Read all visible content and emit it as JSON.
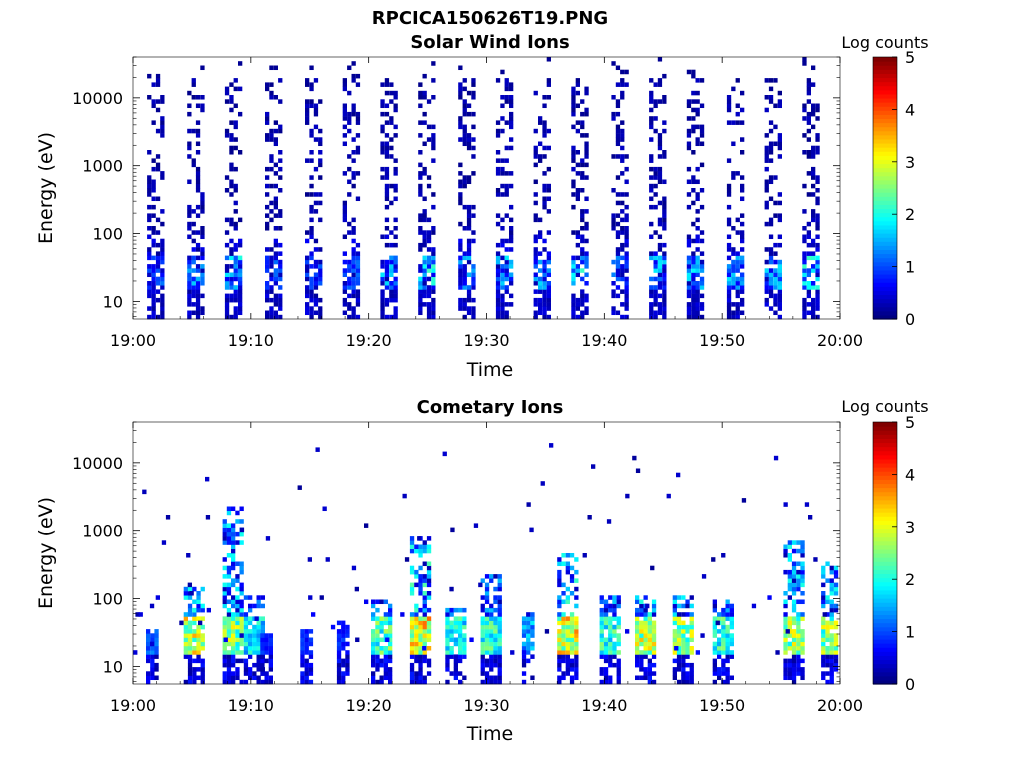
{
  "figure": {
    "filename": "RPCICA150626T19.PNG"
  },
  "chart_data": [
    {
      "type": "heatmap",
      "title": "Solar Wind Ions",
      "xlabel": "Time",
      "ylabel": "Energy (eV)",
      "x_ticks": [
        "19:00",
        "19:10",
        "19:20",
        "19:30",
        "19:40",
        "19:50",
        "20:00"
      ],
      "x_range": [
        "19:00",
        "20:00"
      ],
      "y_scale": "log",
      "y_range": [
        5.5,
        40000
      ],
      "y_ticks": [
        10,
        100,
        1000,
        10000
      ],
      "y_tick_labels": [
        "10",
        "100",
        "1000",
        "10000"
      ],
      "colorbar": {
        "label": "Log counts",
        "range": [
          0,
          5
        ],
        "ticks": [
          "0",
          "1",
          "2",
          "3",
          "4",
          "5"
        ],
        "colormap": "jet"
      },
      "sweep_start_minutes": [
        1.2,
        4.6,
        7.8,
        11.2,
        14.6,
        17.8,
        21.0,
        24.2,
        27.6,
        30.8,
        34.0,
        37.2,
        40.6,
        43.8,
        47.0,
        50.4,
        53.6,
        56.8,
        59.8
      ],
      "sweep_peak_log_counts": [
        1.1,
        1.5,
        1.9,
        1.0,
        0.9,
        1.0,
        1.6,
        2.0,
        1.4,
        1.6,
        1.5,
        2.0,
        1.2,
        1.6,
        1.7,
        1.6,
        1.6,
        2.0,
        1.9
      ],
      "peak_energy_eV": [
        20,
        30
      ]
    },
    {
      "type": "heatmap",
      "title": "Cometary Ions",
      "xlabel": "Time",
      "ylabel": "Energy (eV)",
      "x_ticks": [
        "19:00",
        "19:10",
        "19:20",
        "19:30",
        "19:40",
        "19:50",
        "20:00"
      ],
      "x_range": [
        "19:00",
        "20:00"
      ],
      "y_scale": "log",
      "y_range": [
        5.5,
        40000
      ],
      "y_ticks": [
        10,
        100,
        1000,
        10000
      ],
      "y_tick_labels": [
        "10",
        "100",
        "1000",
        "10000"
      ],
      "colorbar": {
        "label": "Log counts",
        "range": [
          0,
          5
        ],
        "ticks": [
          "0",
          "1",
          "2",
          "3",
          "4",
          "5"
        ],
        "colormap": "jet"
      },
      "bursts": [
        {
          "t": 1.1,
          "peak_log_counts": 1.4,
          "max_energy_eV": 30
        },
        {
          "t": 4.3,
          "peak_log_counts": 3.6,
          "max_energy_eV": 120
        },
        {
          "t": 7.6,
          "peak_log_counts": 3.2,
          "max_energy_eV": 2000
        },
        {
          "t": 9.4,
          "peak_log_counts": 2.2,
          "max_energy_eV": 100
        },
        {
          "t": 10.8,
          "peak_log_counts": 1.0,
          "max_energy_eV": 25
        },
        {
          "t": 14.2,
          "peak_log_counts": 1.0,
          "max_energy_eV": 30
        },
        {
          "t": 17.3,
          "peak_log_counts": 1.0,
          "max_energy_eV": 40
        },
        {
          "t": 20.2,
          "peak_log_counts": 2.8,
          "max_energy_eV": 80
        },
        {
          "t": 23.5,
          "peak_log_counts": 3.9,
          "max_energy_eV": 700
        },
        {
          "t": 26.5,
          "peak_log_counts": 2.4,
          "max_energy_eV": 60
        },
        {
          "t": 29.5,
          "peak_log_counts": 2.6,
          "max_energy_eV": 200
        },
        {
          "t": 33.0,
          "peak_log_counts": 1.8,
          "max_energy_eV": 50
        },
        {
          "t": 36.0,
          "peak_log_counts": 3.8,
          "max_energy_eV": 400
        },
        {
          "t": 39.6,
          "peak_log_counts": 2.6,
          "max_energy_eV": 100
        },
        {
          "t": 42.6,
          "peak_log_counts": 3.5,
          "max_energy_eV": 100
        },
        {
          "t": 45.8,
          "peak_log_counts": 3.2,
          "max_energy_eV": 100
        },
        {
          "t": 49.2,
          "peak_log_counts": 2.6,
          "max_energy_eV": 80
        },
        {
          "t": 55.2,
          "peak_log_counts": 3.3,
          "max_energy_eV": 600
        },
        {
          "t": 58.4,
          "peak_log_counts": 3.2,
          "max_energy_eV": 300
        }
      ],
      "peak_energy_eV": [
        20,
        40
      ]
    }
  ]
}
